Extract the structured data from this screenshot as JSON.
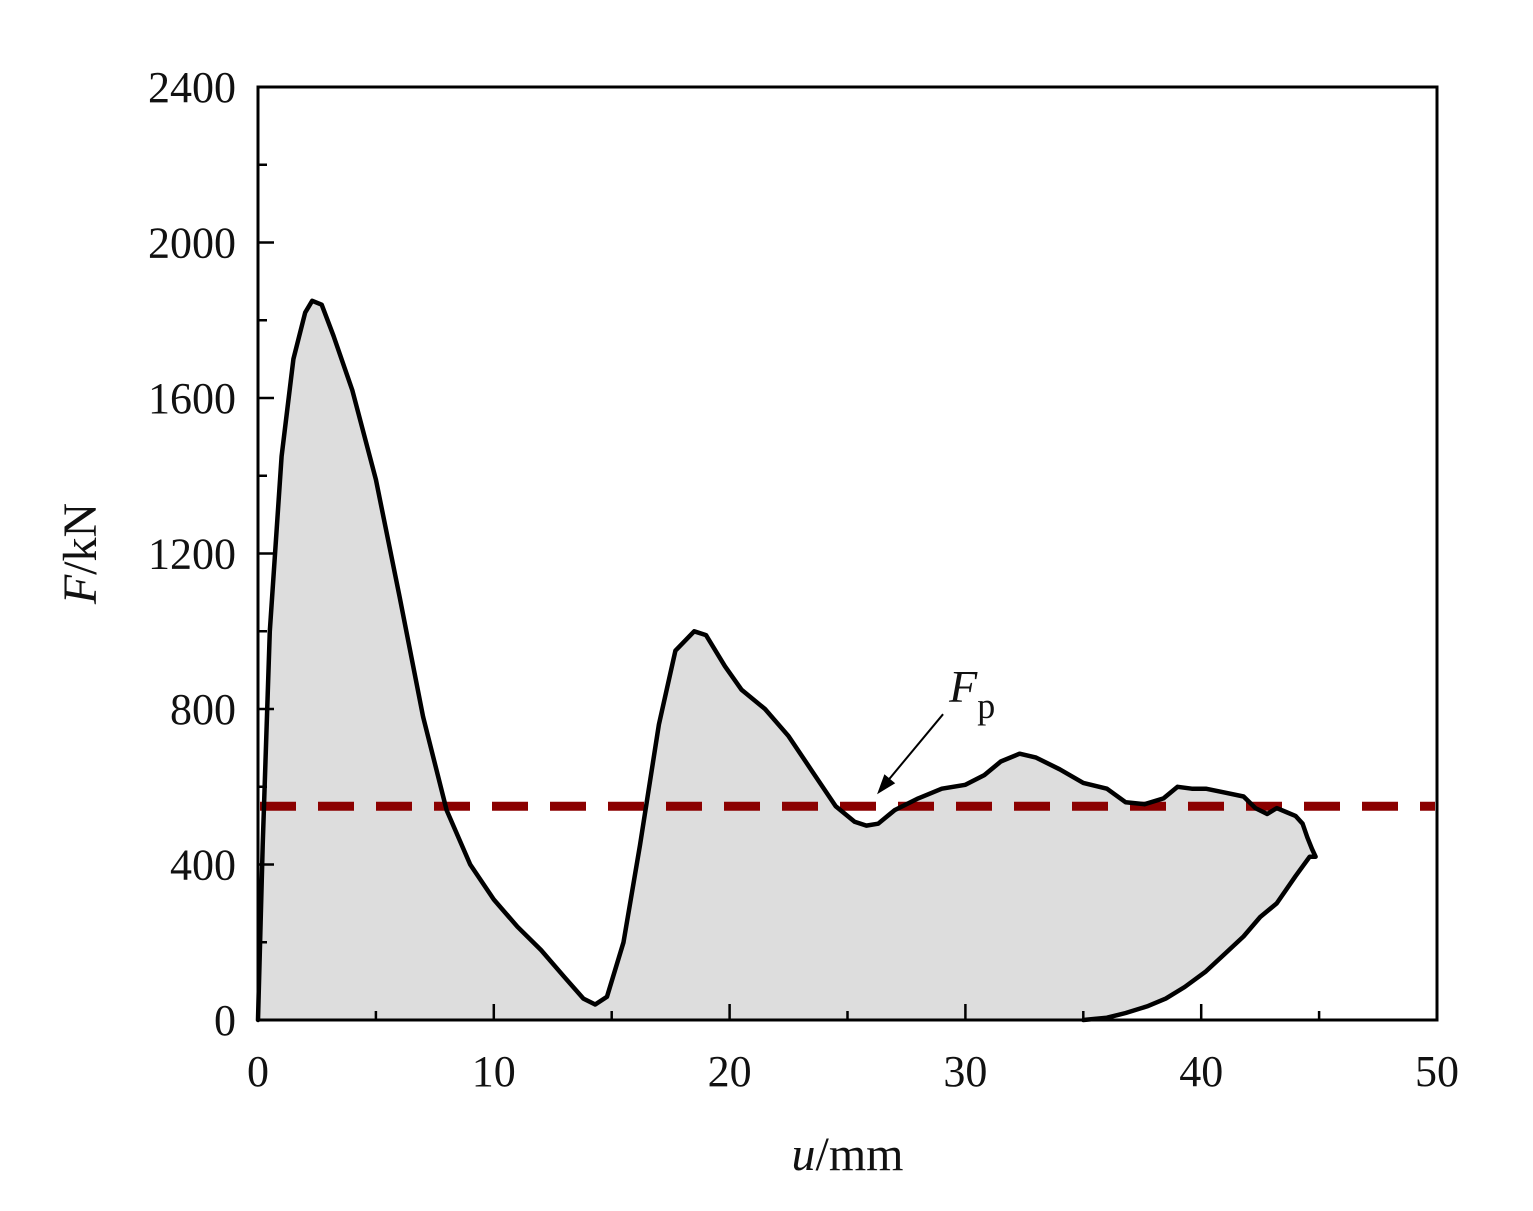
{
  "chart_data": {
    "type": "area",
    "title": "",
    "xlabel": {
      "var": "u",
      "unit": "/mm"
    },
    "ylabel": {
      "var": "F",
      "unit": "/kN"
    },
    "xlim": [
      0,
      50
    ],
    "ylim": [
      0,
      2400
    ],
    "xticks": [
      0,
      10,
      20,
      30,
      40,
      50
    ],
    "xtick_labels": [
      "0",
      "10",
      "20",
      "30",
      "40",
      "50"
    ],
    "yticks": [
      0,
      400,
      800,
      1200,
      1600,
      2000,
      2400
    ],
    "ytick_labels": [
      "0",
      "400",
      "800",
      "1200",
      "1600",
      "2000",
      "2400"
    ],
    "grid": false,
    "colors": {
      "curve": "#000000",
      "fill": "#dddddd",
      "reference": "#8b0000"
    },
    "series": [
      {
        "role": "loading-curve",
        "points": [
          [
            0,
            0
          ],
          [
            0.2,
            450
          ],
          [
            0.5,
            1000
          ],
          [
            1.0,
            1450
          ],
          [
            1.5,
            1700
          ],
          [
            2.0,
            1820
          ],
          [
            2.3,
            1850
          ],
          [
            2.7,
            1840
          ],
          [
            3.2,
            1760
          ],
          [
            4.0,
            1620
          ],
          [
            5.0,
            1390
          ],
          [
            6.0,
            1090
          ],
          [
            7.0,
            780
          ],
          [
            8.0,
            540
          ],
          [
            9.0,
            400
          ],
          [
            10.0,
            310
          ],
          [
            11.0,
            240
          ],
          [
            12.0,
            180
          ],
          [
            13.0,
            110
          ],
          [
            13.8,
            55
          ],
          [
            14.3,
            40
          ],
          [
            14.8,
            60
          ],
          [
            15.5,
            200
          ],
          [
            16.2,
            450
          ],
          [
            17.0,
            760
          ],
          [
            17.7,
            950
          ],
          [
            18.5,
            1000
          ],
          [
            19.0,
            990
          ],
          [
            19.8,
            910
          ],
          [
            20.5,
            850
          ],
          [
            21.5,
            800
          ],
          [
            22.5,
            730
          ],
          [
            23.5,
            640
          ],
          [
            24.5,
            550
          ],
          [
            25.3,
            510
          ],
          [
            25.8,
            500
          ],
          [
            26.3,
            505
          ],
          [
            27.0,
            540
          ],
          [
            28.0,
            570
          ],
          [
            29.0,
            595
          ],
          [
            30.0,
            605
          ],
          [
            30.8,
            630
          ],
          [
            31.5,
            665
          ],
          [
            32.3,
            685
          ],
          [
            33.0,
            675
          ],
          [
            34.0,
            645
          ],
          [
            35.0,
            610
          ],
          [
            36.0,
            595
          ],
          [
            36.8,
            560
          ],
          [
            37.6,
            555
          ],
          [
            38.4,
            570
          ],
          [
            39.0,
            600
          ],
          [
            39.6,
            595
          ],
          [
            40.2,
            595
          ],
          [
            41.0,
            585
          ],
          [
            41.8,
            575
          ],
          [
            42.3,
            545
          ],
          [
            42.8,
            530
          ],
          [
            43.2,
            545
          ],
          [
            43.6,
            535
          ],
          [
            44.0,
            525
          ],
          [
            44.3,
            505
          ],
          [
            44.5,
            470
          ],
          [
            44.7,
            440
          ],
          [
            44.85,
            420
          ],
          [
            44.6,
            420
          ],
          [
            44.0,
            370
          ],
          [
            43.2,
            300
          ],
          [
            42.5,
            265
          ],
          [
            41.8,
            215
          ],
          [
            41.0,
            170
          ],
          [
            40.2,
            125
          ],
          [
            39.3,
            85
          ],
          [
            38.5,
            55
          ],
          [
            37.7,
            35
          ],
          [
            36.8,
            18
          ],
          [
            36.0,
            6
          ],
          [
            35.0,
            0
          ]
        ]
      },
      {
        "role": "reference-line",
        "y": 550,
        "style": "dashed"
      }
    ],
    "annotations": [
      {
        "text": "F",
        "subscript": "p",
        "points_to": [
          26.0,
          550
        ]
      }
    ]
  }
}
